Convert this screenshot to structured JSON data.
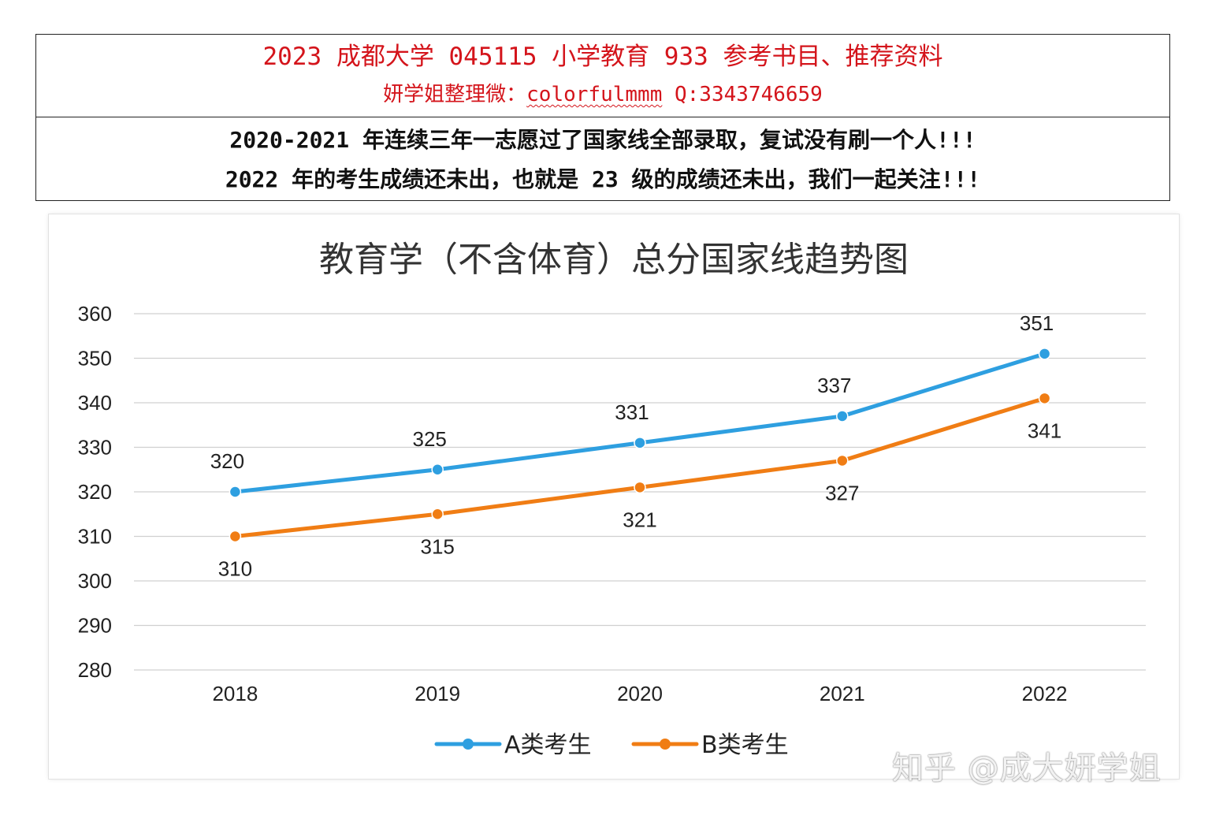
{
  "header": {
    "title": "2023 成都大学 045115 小学教育 933 参考书目、推荐资料",
    "contact_prefix": "妍学姐整理微：",
    "contact_wechat": "colorfulmmm",
    "contact_qq": "Q:3343746659",
    "note_1": "2020-2021 年连续三年一志愿过了国家线全部录取，复试没有刷一个人!!!",
    "note_2": "2022 年的考生成绩还未出，也就是 23 级的成绩还未出，我们一起关注!!!"
  },
  "chart_data": {
    "type": "line",
    "title": "教育学（不含体育）总分国家线趋势图",
    "categories": [
      "2018",
      "2019",
      "2020",
      "2021",
      "2022"
    ],
    "series": [
      {
        "name": "A类考生",
        "values": [
          320,
          325,
          331,
          337,
          351
        ],
        "color": "#2e9fe0"
      },
      {
        "name": "B类考生",
        "values": [
          310,
          315,
          321,
          327,
          341
        ],
        "color": "#f07d14"
      }
    ],
    "ylim": [
      280,
      360
    ],
    "yticks": [
      360,
      350,
      340,
      330,
      320,
      310,
      300,
      290,
      280
    ],
    "grid": true,
    "legend": "bottom"
  },
  "watermark": "知乎 @成大妍学姐"
}
